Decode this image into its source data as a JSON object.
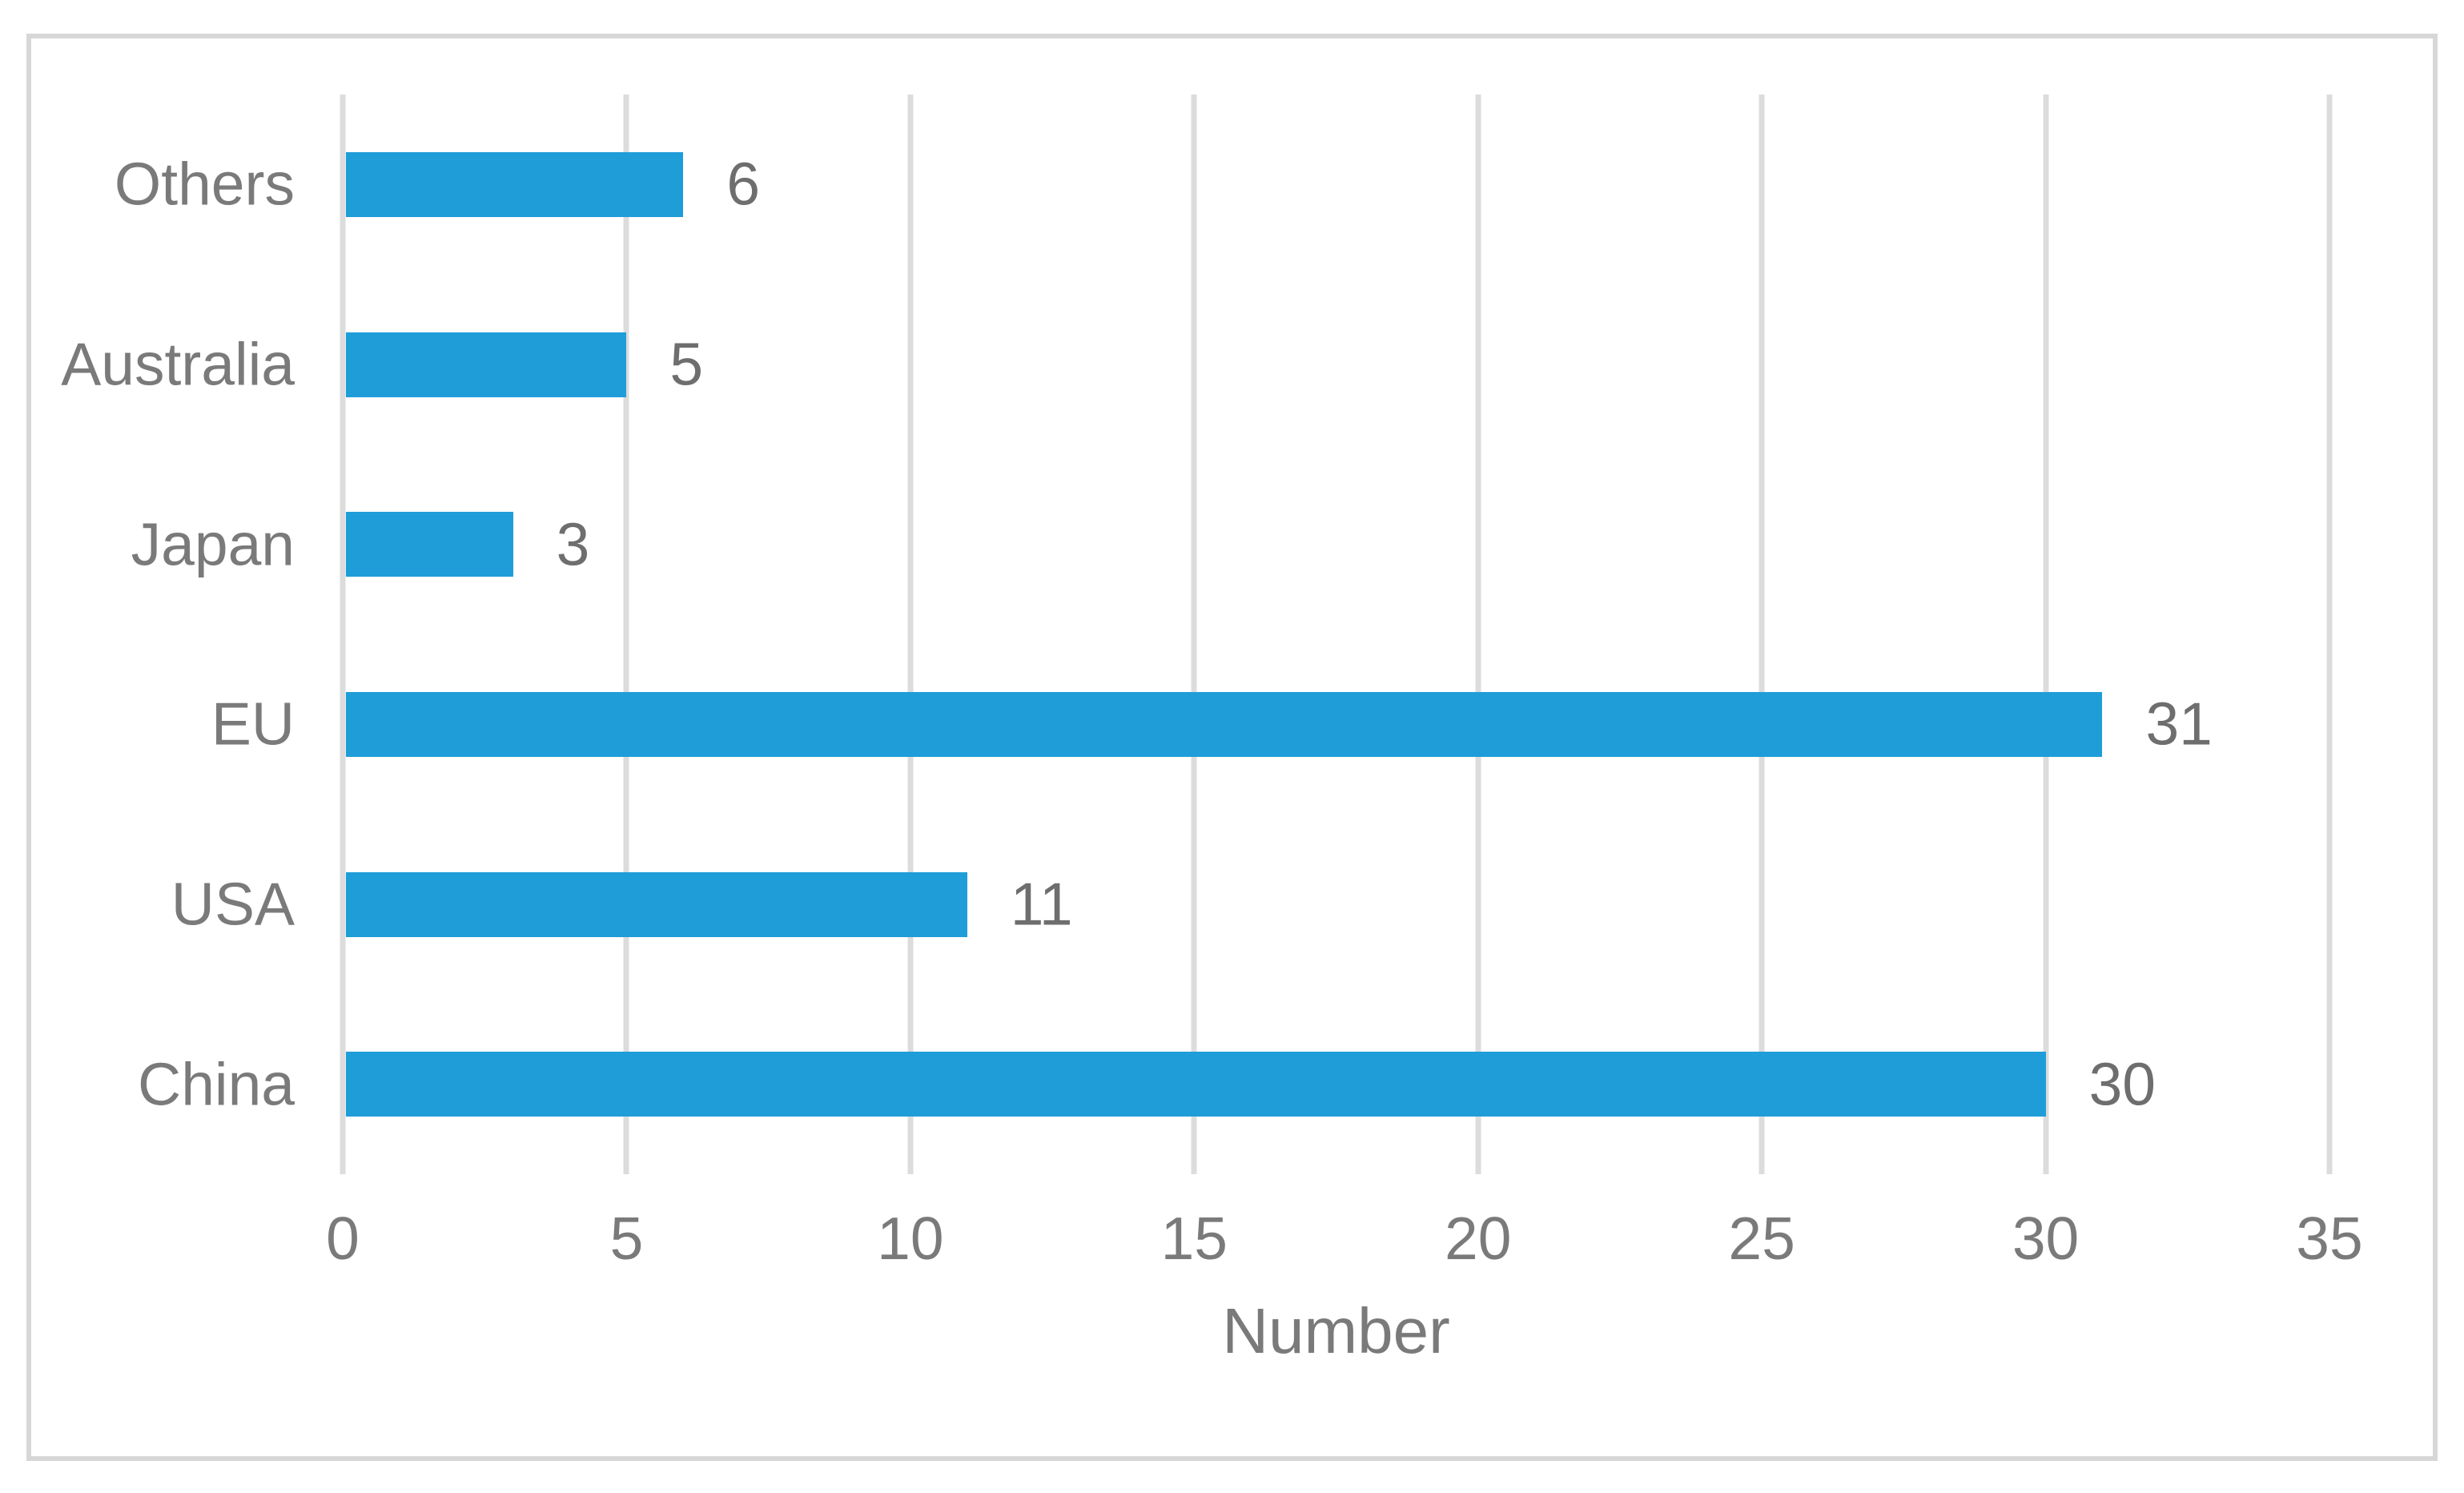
{
  "chart_data": {
    "type": "bar",
    "orientation": "horizontal",
    "categories": [
      "Others",
      "Australia",
      "Japan",
      "EU",
      "USA",
      "China"
    ],
    "values": [
      6,
      5,
      3,
      31,
      11,
      30
    ],
    "data_labels": [
      "6",
      "5",
      "3",
      "31",
      "11",
      "30"
    ],
    "title": "",
    "xlabel": "Number",
    "ylabel": "",
    "xlim": [
      0,
      35
    ],
    "xticks": [
      0,
      5,
      10,
      15,
      20,
      25,
      30,
      35
    ],
    "legend": "none",
    "grid": "vertical-only",
    "data_labels_shown": true,
    "colors": {
      "bar": "#1f9dd9",
      "category_text": "#7a7a7a",
      "value_text": "#6e6e6e",
      "tick_text": "#7a7a7a",
      "axis_title_text": "#7a7a7a",
      "gridline": "#dcdcdc",
      "frame_border": "#d7d7d7",
      "background": "#ffffff"
    }
  }
}
